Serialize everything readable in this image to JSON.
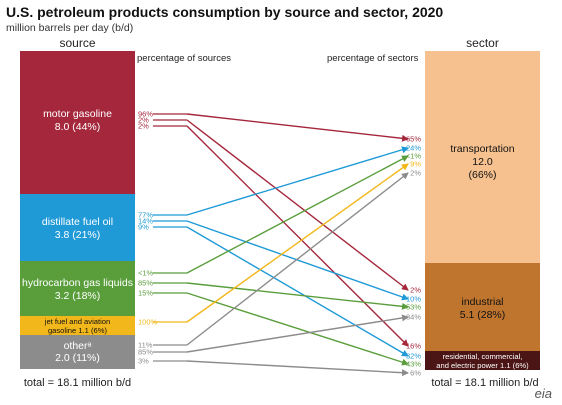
{
  "title": "U.S. petroleum products consumption by source and sector, 2020",
  "subtitle": "million barrels per day (b/d)",
  "source_header": "source",
  "sector_header": "sector",
  "pct_sources_label": "percentage of sources",
  "pct_sectors_label": "percentage of sectors",
  "sources": [
    {
      "key": "motor",
      "name": "motor gasoline",
      "value": "8.0 (44%)",
      "amount": 8.0,
      "color": "#A5273C"
    },
    {
      "key": "distillate",
      "name": "distillate fuel oil",
      "value": "3.8 (21%)",
      "amount": 3.8,
      "color": "#1F9AD6"
    },
    {
      "key": "hgl",
      "name": "hydrocarbon gas liquids",
      "value": "3.2 (18%)",
      "amount": 3.2,
      "color": "#5A9E3C"
    },
    {
      "key": "jet",
      "name": "jet fuel and aviation",
      "value": "gasoline  1.1 (6%)",
      "amount": 1.1,
      "color": "#F2B71B"
    },
    {
      "key": "other",
      "name": "otherᵃ",
      "value": "2.0 (11%)",
      "amount": 2.0,
      "color": "#8C8C8C"
    }
  ],
  "sectors": [
    {
      "key": "transport",
      "name": "transportation",
      "value": "12.0",
      "pct": "(66%)",
      "amount": 12.0,
      "color": "#F6C18F"
    },
    {
      "key": "industrial",
      "name": "industrial",
      "value": "5.1  (28%)",
      "amount": 5.1,
      "color": "#C0752F"
    },
    {
      "key": "residential",
      "name": "residential, commercial,",
      "value": "and electric power  1.1  (6%)",
      "amount": 1.1,
      "color": "#4A1514"
    }
  ],
  "flows": [
    {
      "source": "motor",
      "sector": "transport",
      "source_pct": "96%",
      "sector_pct": "65%"
    },
    {
      "source": "motor",
      "sector": "industrial",
      "source_pct": "2%",
      "sector_pct": "2%"
    },
    {
      "source": "motor",
      "sector": "residential",
      "source_pct": "2%",
      "sector_pct": "16%"
    },
    {
      "source": "distillate",
      "sector": "transport",
      "source_pct": "77%",
      "sector_pct": "24%"
    },
    {
      "source": "distillate",
      "sector": "industrial",
      "source_pct": "14%",
      "sector_pct": "10%"
    },
    {
      "source": "distillate",
      "sector": "residential",
      "source_pct": "9%",
      "sector_pct": "32%"
    },
    {
      "source": "hgl",
      "sector": "transport",
      "source_pct": "<1%",
      "sector_pct": "<1%"
    },
    {
      "source": "hgl",
      "sector": "industrial",
      "source_pct": "85%",
      "sector_pct": "53%"
    },
    {
      "source": "hgl",
      "sector": "residential",
      "source_pct": "15%",
      "sector_pct": "43%"
    },
    {
      "source": "jet",
      "sector": "transport",
      "source_pct": "100%",
      "sector_pct": "9%"
    },
    {
      "source": "other",
      "sector": "transport",
      "source_pct": "11%",
      "sector_pct": "2%"
    },
    {
      "source": "other",
      "sector": "industrial",
      "source_pct": "85%",
      "sector_pct": "34%"
    },
    {
      "source": "other",
      "sector": "residential",
      "source_pct": "3%",
      "sector_pct": "6%"
    }
  ],
  "total_left": "total = 18.1 million b/d",
  "total_right": "total = 18.1 million b/d",
  "logo": "eia"
}
